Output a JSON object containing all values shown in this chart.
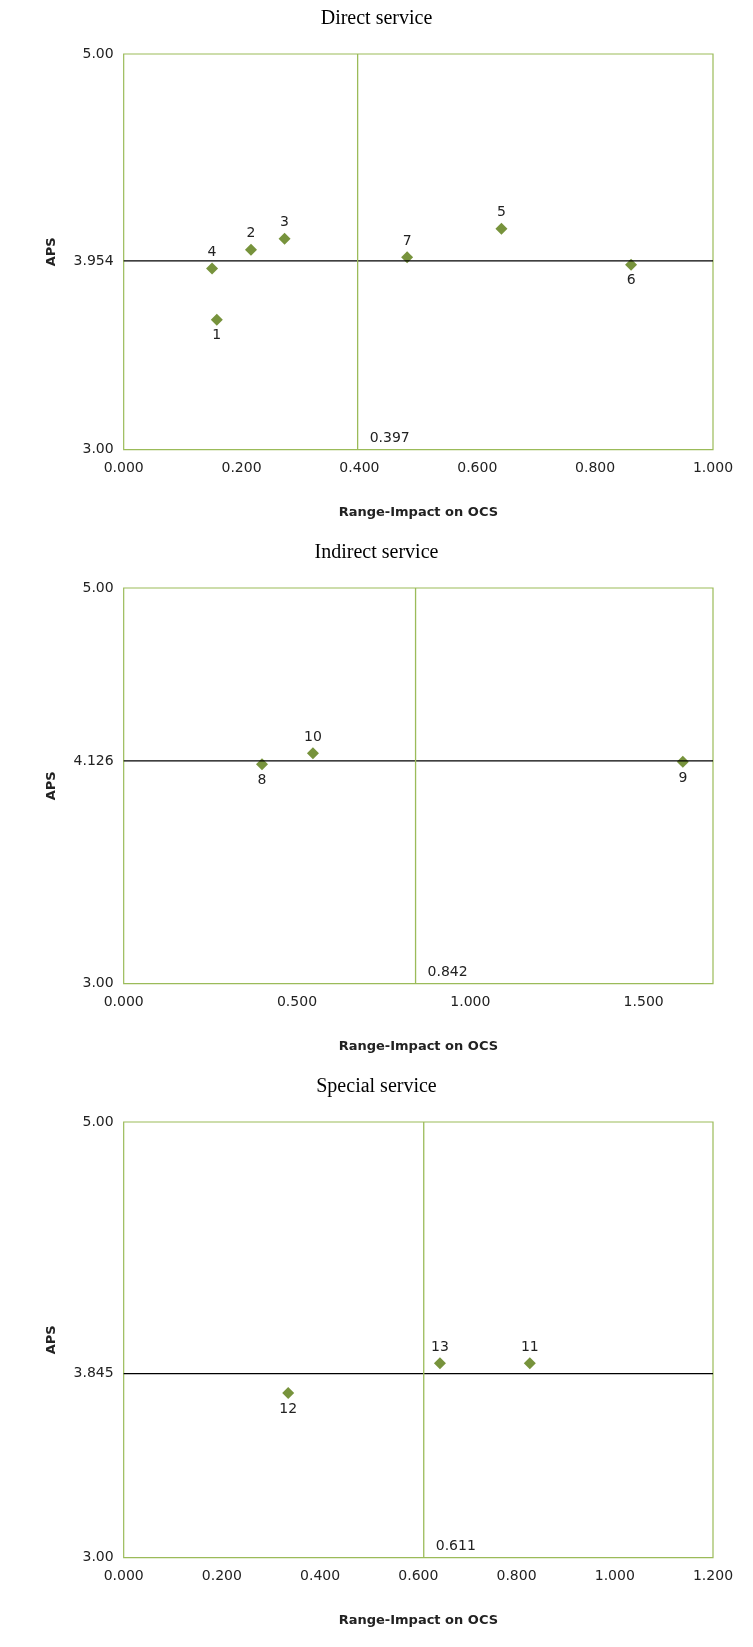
{
  "chart_data": [
    {
      "type": "scatter",
      "title": "Direct service",
      "xlabel": "Range-Impact on OCS",
      "ylabel": "APS",
      "marker": "diamond",
      "grid": false,
      "xlim": [
        0,
        1
      ],
      "ylim": [
        3,
        5
      ],
      "xticks": [
        {
          "value": 0,
          "label": "0.000"
        },
        {
          "value": 0.2,
          "label": "0.200"
        },
        {
          "value": 0.4,
          "label": "0.400"
        },
        {
          "value": 0.6,
          "label": "0.600"
        },
        {
          "value": 0.8,
          "label": "0.800"
        },
        {
          "value": 1,
          "label": "1.000"
        }
      ],
      "yticks": [
        {
          "value": 3,
          "label": "3.00"
        },
        {
          "value": 3.954,
          "label": "3.954"
        },
        {
          "value": 5,
          "label": "5.00"
        }
      ],
      "series": [
        {
          "color": "#77933c",
          "x": [
            0.158,
            0.216,
            0.273,
            0.15,
            0.641,
            0.861,
            0.481
          ],
          "values": [
            3.656,
            4.01,
            4.066,
            3.915,
            4.117,
            3.934,
            3.972
          ]
        }
      ],
      "annotations": [
        {
          "text": "1",
          "x": 0.158,
          "y": 3.656
        },
        {
          "text": "2",
          "x": 0.216,
          "y": 4.01
        },
        {
          "text": "3",
          "x": 0.273,
          "y": 4.066
        },
        {
          "text": "4",
          "x": 0.15,
          "y": 3.915
        },
        {
          "text": "5",
          "x": 0.641,
          "y": 4.117
        },
        {
          "text": "6",
          "x": 0.861,
          "y": 3.934
        },
        {
          "text": "7",
          "x": 0.481,
          "y": 3.972
        }
      ],
      "ref_lines": [
        {
          "axis": "y",
          "value": 3.954,
          "color": "#000000"
        },
        {
          "axis": "x",
          "value": 0.397,
          "label": "0.397",
          "color": "#9bbb59"
        }
      ]
    },
    {
      "type": "scatter",
      "title": "Indirect service",
      "xlabel": "Range-Impact on OCS",
      "ylabel": "APS",
      "marker": "diamond",
      "grid": false,
      "xlim": [
        0,
        1.7
      ],
      "ylim": [
        3,
        5
      ],
      "xticks": [
        {
          "value": 0,
          "label": "0.000"
        },
        {
          "value": 0.5,
          "label": "0.500"
        },
        {
          "value": 1,
          "label": "1.000"
        },
        {
          "value": 1.5,
          "label": "1.500"
        }
      ],
      "yticks": [
        {
          "value": 3,
          "label": "3.00"
        },
        {
          "value": 4.126,
          "label": "4.126"
        },
        {
          "value": 5,
          "label": "5.00"
        }
      ],
      "series": [
        {
          "color": "#77933c",
          "x": [
            0.399,
            1.613,
            0.546
          ],
          "values": [
            4.109,
            4.121,
            4.164
          ]
        }
      ],
      "annotations": [
        {
          "text": "8",
          "x": 0.399,
          "y": 4.109
        },
        {
          "text": "9",
          "x": 1.613,
          "y": 4.121
        },
        {
          "text": "10",
          "x": 0.546,
          "y": 4.164
        }
      ],
      "ref_lines": [
        {
          "axis": "y",
          "value": 4.126,
          "color": "#000000"
        },
        {
          "axis": "x",
          "value": 0.842,
          "label": "0.842",
          "color": "#9bbb59"
        }
      ]
    },
    {
      "type": "scatter",
      "title": "Special service",
      "xlabel": "Range-Impact on OCS",
      "ylabel": "APS",
      "marker": "diamond",
      "grid": false,
      "xlim": [
        0,
        1.2
      ],
      "ylim": [
        3,
        5
      ],
      "xticks": [
        {
          "value": 0,
          "label": "0.000"
        },
        {
          "value": 0.2,
          "label": "0.200"
        },
        {
          "value": 0.4,
          "label": "0.400"
        },
        {
          "value": 0.6,
          "label": "0.600"
        },
        {
          "value": 0.8,
          "label": "0.800"
        },
        {
          "value": 1,
          "label": "1.000"
        },
        {
          "value": 1.2,
          "label": "1.200"
        }
      ],
      "yticks": [
        {
          "value": 3,
          "label": "3.00"
        },
        {
          "value": 3.845,
          "label": "3.845"
        },
        {
          "value": 5,
          "label": "5.00"
        }
      ],
      "series": [
        {
          "color": "#77933c",
          "x": [
            0.827,
            0.335,
            0.644
          ],
          "values": [
            3.892,
            3.756,
            3.892
          ]
        }
      ],
      "annotations": [
        {
          "text": "11",
          "x": 0.827,
          "y": 3.892
        },
        {
          "text": "12",
          "x": 0.335,
          "y": 3.756
        },
        {
          "text": "13",
          "x": 0.644,
          "y": 3.892
        }
      ],
      "ref_lines": [
        {
          "axis": "y",
          "value": 3.845,
          "color": "#000000"
        },
        {
          "axis": "x",
          "value": 0.611,
          "label": "0.611",
          "color": "#9bbb59"
        }
      ]
    }
  ]
}
